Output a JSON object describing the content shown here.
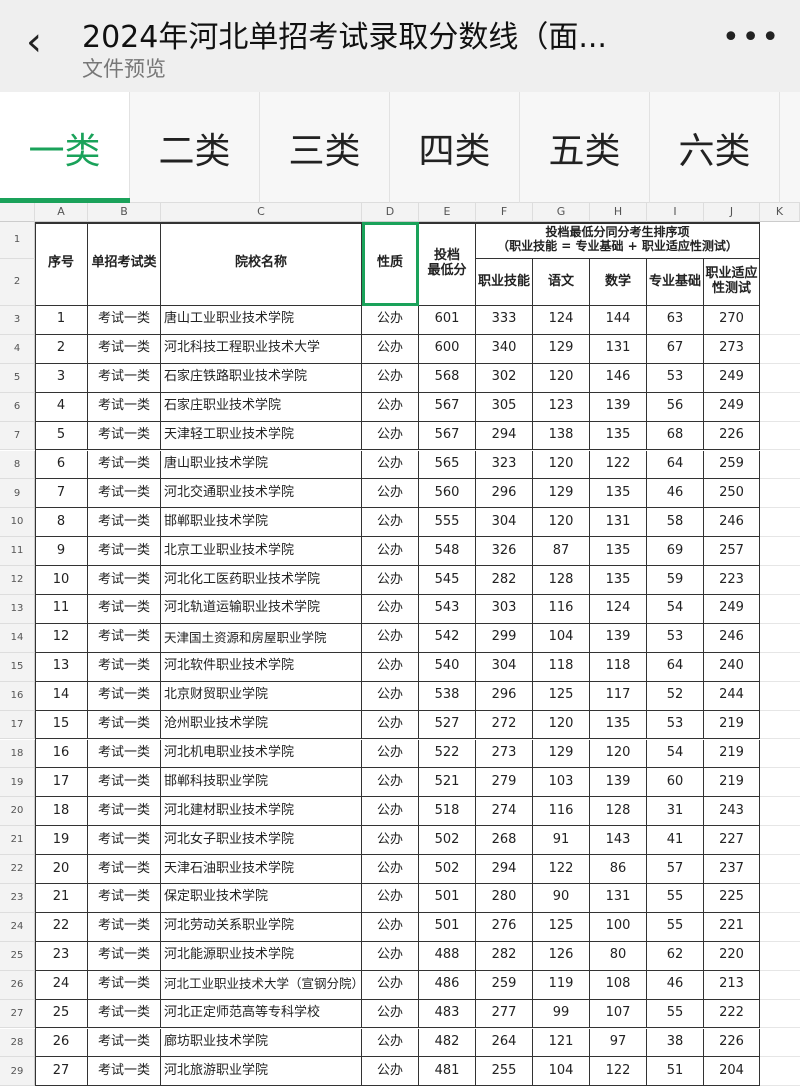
{
  "header": {
    "back_icon": "chevron-left-icon",
    "title": "2024年河北单招考试录取分数线（面...",
    "subtitle": "文件预览",
    "more_icon": "more-horizontal-icon"
  },
  "tabs": [
    {
      "label": "一类",
      "active": true
    },
    {
      "label": "二类"
    },
    {
      "label": "三类"
    },
    {
      "label": "四类"
    },
    {
      "label": "五类"
    },
    {
      "label": "六类"
    }
  ],
  "accent": "#1aa25a",
  "sheet": {
    "columns": [
      "A",
      "B",
      "C",
      "D",
      "E",
      "F",
      "G",
      "H",
      "I",
      "J",
      "K"
    ],
    "headers": {
      "seq": "序号",
      "exam_type": "单招考试类",
      "school": "院校名称",
      "nature": "性质",
      "min_score": "投档\n最低分",
      "group": "投档最低分同分考生排序项\n（职业技能 = 专业基础 + 职业适应性测试）",
      "skill": "职业技能",
      "chinese": "语文",
      "math": "数学",
      "basic": "专业基础",
      "aptitude": "职业适应\n性测试"
    },
    "rows": [
      [
        "1",
        "考试一类",
        "唐山工业职业技术学院",
        "公办",
        "601",
        "333",
        "124",
        "144",
        "63",
        "270"
      ],
      [
        "2",
        "考试一类",
        "河北科技工程职业技术大学",
        "公办",
        "600",
        "340",
        "129",
        "131",
        "67",
        "273"
      ],
      [
        "3",
        "考试一类",
        "石家庄铁路职业技术学院",
        "公办",
        "568",
        "302",
        "120",
        "146",
        "53",
        "249"
      ],
      [
        "4",
        "考试一类",
        "石家庄职业技术学院",
        "公办",
        "567",
        "305",
        "123",
        "139",
        "56",
        "249"
      ],
      [
        "5",
        "考试一类",
        "天津轻工职业技术学院",
        "公办",
        "567",
        "294",
        "138",
        "135",
        "68",
        "226"
      ],
      [
        "6",
        "考试一类",
        "唐山职业技术学院",
        "公办",
        "565",
        "323",
        "120",
        "122",
        "64",
        "259"
      ],
      [
        "7",
        "考试一类",
        "河北交通职业技术学院",
        "公办",
        "560",
        "296",
        "129",
        "135",
        "46",
        "250"
      ],
      [
        "8",
        "考试一类",
        "邯郸职业技术学院",
        "公办",
        "555",
        "304",
        "120",
        "131",
        "58",
        "246"
      ],
      [
        "9",
        "考试一类",
        "北京工业职业技术学院",
        "公办",
        "548",
        "326",
        "87",
        "135",
        "69",
        "257"
      ],
      [
        "10",
        "考试一类",
        "河北化工医药职业技术学院",
        "公办",
        "545",
        "282",
        "128",
        "135",
        "59",
        "223"
      ],
      [
        "11",
        "考试一类",
        "河北轨道运输职业技术学院",
        "公办",
        "543",
        "303",
        "116",
        "124",
        "54",
        "249"
      ],
      [
        "12",
        "考试一类",
        "天津国土资源和房屋职业学院",
        "公办",
        "542",
        "299",
        "104",
        "139",
        "53",
        "246"
      ],
      [
        "13",
        "考试一类",
        "河北软件职业技术学院",
        "公办",
        "540",
        "304",
        "118",
        "118",
        "64",
        "240"
      ],
      [
        "14",
        "考试一类",
        "北京财贸职业学院",
        "公办",
        "538",
        "296",
        "125",
        "117",
        "52",
        "244"
      ],
      [
        "15",
        "考试一类",
        "沧州职业技术学院",
        "公办",
        "527",
        "272",
        "120",
        "135",
        "53",
        "219"
      ],
      [
        "16",
        "考试一类",
        "河北机电职业技术学院",
        "公办",
        "522",
        "273",
        "129",
        "120",
        "54",
        "219"
      ],
      [
        "17",
        "考试一类",
        "邯郸科技职业学院",
        "公办",
        "521",
        "279",
        "103",
        "139",
        "60",
        "219"
      ],
      [
        "18",
        "考试一类",
        "河北建材职业技术学院",
        "公办",
        "518",
        "274",
        "116",
        "128",
        "31",
        "243"
      ],
      [
        "19",
        "考试一类",
        "河北女子职业技术学院",
        "公办",
        "502",
        "268",
        "91",
        "143",
        "41",
        "227"
      ],
      [
        "20",
        "考试一类",
        "天津石油职业技术学院",
        "公办",
        "502",
        "294",
        "122",
        "86",
        "57",
        "237"
      ],
      [
        "21",
        "考试一类",
        "保定职业技术学院",
        "公办",
        "501",
        "280",
        "90",
        "131",
        "55",
        "225"
      ],
      [
        "22",
        "考试一类",
        "河北劳动关系职业学院",
        "公办",
        "501",
        "276",
        "125",
        "100",
        "55",
        "221"
      ],
      [
        "23",
        "考试一类",
        "河北能源职业技术学院",
        "公办",
        "488",
        "282",
        "126",
        "80",
        "62",
        "220"
      ],
      [
        "24",
        "考试一类",
        "河北工业职业技术大学（宣钢分院）",
        "公办",
        "486",
        "259",
        "119",
        "108",
        "46",
        "213"
      ],
      [
        "25",
        "考试一类",
        "河北正定师范高等专科学校",
        "公办",
        "483",
        "277",
        "99",
        "107",
        "55",
        "222"
      ],
      [
        "26",
        "考试一类",
        "廊坊职业技术学院",
        "公办",
        "482",
        "264",
        "121",
        "97",
        "38",
        "226"
      ],
      [
        "27",
        "考试一类",
        "河北旅游职业学院",
        "公办",
        "481",
        "255",
        "104",
        "122",
        "51",
        "204"
      ]
    ]
  }
}
